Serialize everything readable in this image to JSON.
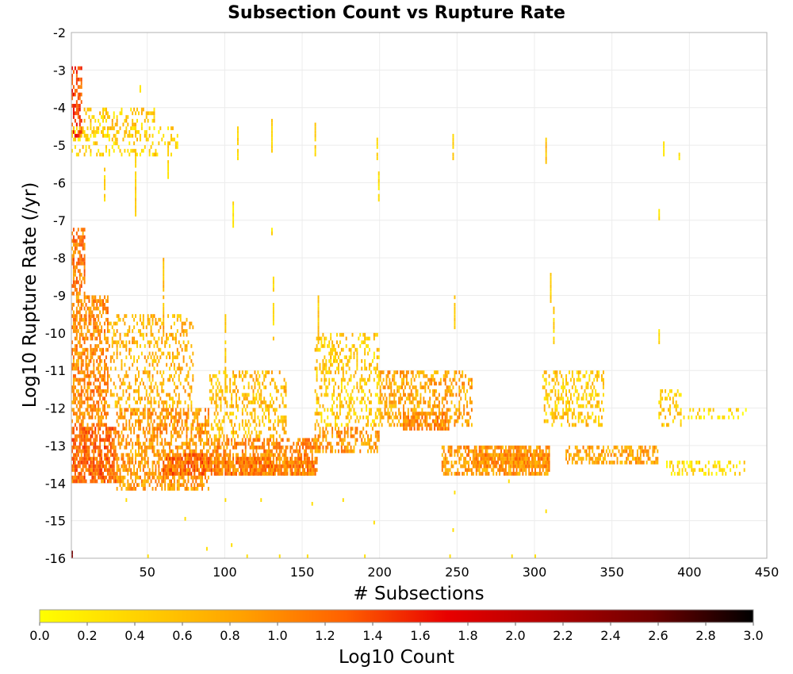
{
  "chart_data": {
    "type": "heatmap",
    "title": "Subsection Count vs Rupture Rate",
    "xlabel": "# Subsections",
    "ylabel": "Log10 Rupture Rate (/yr)",
    "colorbar_label": "Log10 Count",
    "xlim": [
      1,
      450
    ],
    "ylim": [
      -16,
      -2
    ],
    "x_ticks": [
      50,
      100,
      150,
      200,
      250,
      300,
      350,
      400,
      450
    ],
    "y_ticks": [
      -2,
      -3,
      -4,
      -5,
      -6,
      -7,
      -8,
      -9,
      -10,
      -11,
      -12,
      -13,
      -14,
      -15,
      -16
    ],
    "colorbar_ticks": [
      "0.0",
      "0.2",
      "0.4",
      "0.6",
      "0.8",
      "1.0",
      "1.2",
      "1.4",
      "1.6",
      "1.8",
      "2.0",
      "2.2",
      "2.4",
      "2.6",
      "2.8",
      "3.0"
    ],
    "colorbar_range": [
      0,
      3
    ],
    "colormap": [
      "#ffff00",
      "#ffd000",
      "#ffa000",
      "#ff6000",
      "#e80000",
      "#b00000",
      "#700000",
      "#000000"
    ],
    "grid": true,
    "bin_width_subsections": 1,
    "bin_height_log10": 0.1,
    "clusters": [
      {
        "x": [
          1,
          30
        ],
        "y": [
          -14.0,
          -12.5
        ],
        "density": 0.75,
        "value": 1.2
      },
      {
        "x": [
          1,
          25
        ],
        "y": [
          -12.5,
          -9.0
        ],
        "density": 0.55,
        "value": 1.0
      },
      {
        "x": [
          1,
          10
        ],
        "y": [
          -9.0,
          -7.2
        ],
        "density": 0.6,
        "value": 1.1
      },
      {
        "x": [
          1,
          8
        ],
        "y": [
          -4.8,
          -2.9
        ],
        "density": 0.5,
        "value": 1.4
      },
      {
        "x": [
          8,
          55
        ],
        "y": [
          -4.8,
          -4.0
        ],
        "density": 0.25,
        "value": 0.5
      },
      {
        "x": [
          1,
          70
        ],
        "y": [
          -5.3,
          -4.5
        ],
        "density": 0.25,
        "value": 0.4
      },
      {
        "x": [
          30,
          90
        ],
        "y": [
          -14.2,
          -12.0
        ],
        "density": 0.55,
        "value": 0.9
      },
      {
        "x": [
          25,
          80
        ],
        "y": [
          -12.0,
          -9.5
        ],
        "density": 0.3,
        "value": 0.7
      },
      {
        "x": [
          60,
          100
        ],
        "y": [
          -13.8,
          -13.2
        ],
        "density": 0.7,
        "value": 1.2
      },
      {
        "x": [
          90,
          160
        ],
        "y": [
          -13.8,
          -12.8
        ],
        "density": 0.6,
        "value": 1.0
      },
      {
        "x": [
          90,
          140
        ],
        "y": [
          -12.8,
          -11.0
        ],
        "density": 0.35,
        "value": 0.6
      },
      {
        "x": [
          100,
          160
        ],
        "y": [
          -13.8,
          -13.3
        ],
        "density": 0.75,
        "value": 1.1
      },
      {
        "x": [
          158,
          200
        ],
        "y": [
          -13.2,
          -12.5
        ],
        "density": 0.5,
        "value": 0.9
      },
      {
        "x": [
          158,
          200
        ],
        "y": [
          -12.5,
          -10.0
        ],
        "density": 0.3,
        "value": 0.5
      },
      {
        "x": [
          200,
          260
        ],
        "y": [
          -12.5,
          -11.0
        ],
        "density": 0.45,
        "value": 0.8
      },
      {
        "x": [
          215,
          245
        ],
        "y": [
          -12.6,
          -12.1
        ],
        "density": 0.7,
        "value": 1.0
      },
      {
        "x": [
          240,
          310
        ],
        "y": [
          -13.8,
          -13.0
        ],
        "density": 0.65,
        "value": 0.9
      },
      {
        "x": [
          260,
          310
        ],
        "y": [
          -13.6,
          -13.2
        ],
        "density": 0.7,
        "value": 1.0
      },
      {
        "x": [
          305,
          345
        ],
        "y": [
          -12.5,
          -11.0
        ],
        "density": 0.35,
        "value": 0.5
      },
      {
        "x": [
          320,
          380
        ],
        "y": [
          -13.5,
          -13.0
        ],
        "density": 0.55,
        "value": 0.8
      },
      {
        "x": [
          380,
          395
        ],
        "y": [
          -12.5,
          -11.5
        ],
        "density": 0.3,
        "value": 0.5
      },
      {
        "x": [
          385,
          437
        ],
        "y": [
          -13.8,
          -13.4
        ],
        "density": 0.35,
        "value": 0.3
      },
      {
        "x": [
          395,
          437
        ],
        "y": [
          -12.3,
          -12.0
        ],
        "density": 0.25,
        "value": 0.3
      },
      {
        "x": [
          1,
          2
        ],
        "y": [
          -16.0,
          -15.8
        ],
        "density": 1.0,
        "value": 2.6
      }
    ],
    "columns": [
      {
        "x": 100,
        "y": [
          -11.5,
          -9.5
        ],
        "value": 0.5
      },
      {
        "x": 108,
        "y": [
          -5.4,
          -4.5
        ],
        "value": 0.4
      },
      {
        "x": 130,
        "y": [
          -5.2,
          -4.3
        ],
        "value": 0.5
      },
      {
        "x": 131,
        "y": [
          -10.5,
          -8.5
        ],
        "value": 0.4
      },
      {
        "x": 158,
        "y": [
          -5.4,
          -4.3
        ],
        "value": 0.4
      },
      {
        "x": 160,
        "y": [
          -10.5,
          -9.0
        ],
        "value": 0.5
      },
      {
        "x": 198,
        "y": [
          -5.4,
          -4.8
        ],
        "value": 0.4
      },
      {
        "x": 199,
        "y": [
          -6.5,
          -5.5
        ],
        "value": 0.3
      },
      {
        "x": 247,
        "y": [
          -5.4,
          -4.6
        ],
        "value": 0.5
      },
      {
        "x": 248,
        "y": [
          -10.0,
          -9.0
        ],
        "value": 0.4
      },
      {
        "x": 307,
        "y": [
          -5.5,
          -4.8
        ],
        "value": 0.6
      },
      {
        "x": 310,
        "y": [
          -9.2,
          -8.4
        ],
        "value": 0.5
      },
      {
        "x": 312,
        "y": [
          -10.3,
          -9.3
        ],
        "value": 0.4
      },
      {
        "x": 380,
        "y": [
          -10.3,
          -9.9
        ],
        "value": 0.3
      },
      {
        "x": 380,
        "y": [
          -7.0,
          -6.7
        ],
        "value": 0.3
      },
      {
        "x": 383,
        "y": [
          -5.3,
          -4.9
        ],
        "value": 0.3
      },
      {
        "x": 393,
        "y": [
          -5.5,
          -5.2
        ],
        "value": 0.3
      },
      {
        "x": 105,
        "y": [
          -7.2,
          -6.5
        ],
        "value": 0.3
      },
      {
        "x": 130,
        "y": [
          -7.4,
          -7.2
        ],
        "value": 0.3
      },
      {
        "x": 60,
        "y": [
          -9.5,
          -8.0
        ],
        "value": 0.6
      },
      {
        "x": 45,
        "y": [
          -3.6,
          -3.3
        ],
        "value": 0.3
      },
      {
        "x": 22,
        "y": [
          -6.5,
          -5.6
        ],
        "value": 0.4
      },
      {
        "x": 42,
        "y": [
          -7.0,
          -5.0
        ],
        "value": 0.5
      },
      {
        "x": 63,
        "y": [
          -6.0,
          -5.0
        ],
        "value": 0.4
      }
    ],
    "isolated": [
      {
        "x": 114,
        "y": -16.0,
        "value": 0.3
      },
      {
        "x": 135,
        "y": -16.0,
        "value": 0.3
      },
      {
        "x": 153,
        "y": -16.0,
        "value": 0.3
      },
      {
        "x": 190,
        "y": -16.0,
        "value": 0.3
      },
      {
        "x": 245,
        "y": -16.0,
        "value": 0.3
      },
      {
        "x": 285,
        "y": -16.0,
        "value": 0.3
      },
      {
        "x": 300,
        "y": -16.0,
        "value": 0.3
      },
      {
        "x": 196,
        "y": -15.1,
        "value": 0.3
      },
      {
        "x": 247,
        "y": -15.3,
        "value": 0.3
      },
      {
        "x": 307,
        "y": -14.8,
        "value": 0.3
      },
      {
        "x": 248,
        "y": -14.3,
        "value": 0.3
      },
      {
        "x": 283,
        "y": -14.0,
        "value": 0.3
      },
      {
        "x": 176,
        "y": -14.5,
        "value": 0.3
      },
      {
        "x": 156,
        "y": -14.6,
        "value": 0.3
      },
      {
        "x": 104,
        "y": -15.7,
        "value": 0.3
      },
      {
        "x": 88,
        "y": -15.8,
        "value": 0.3
      },
      {
        "x": 74,
        "y": -15.0,
        "value": 0.3
      },
      {
        "x": 100,
        "y": -14.5,
        "value": 0.3
      },
      {
        "x": 123,
        "y": -14.5,
        "value": 0.3
      },
      {
        "x": 36,
        "y": -14.5,
        "value": 0.3
      },
      {
        "x": 50,
        "y": -16.0,
        "value": 0.3
      }
    ]
  }
}
